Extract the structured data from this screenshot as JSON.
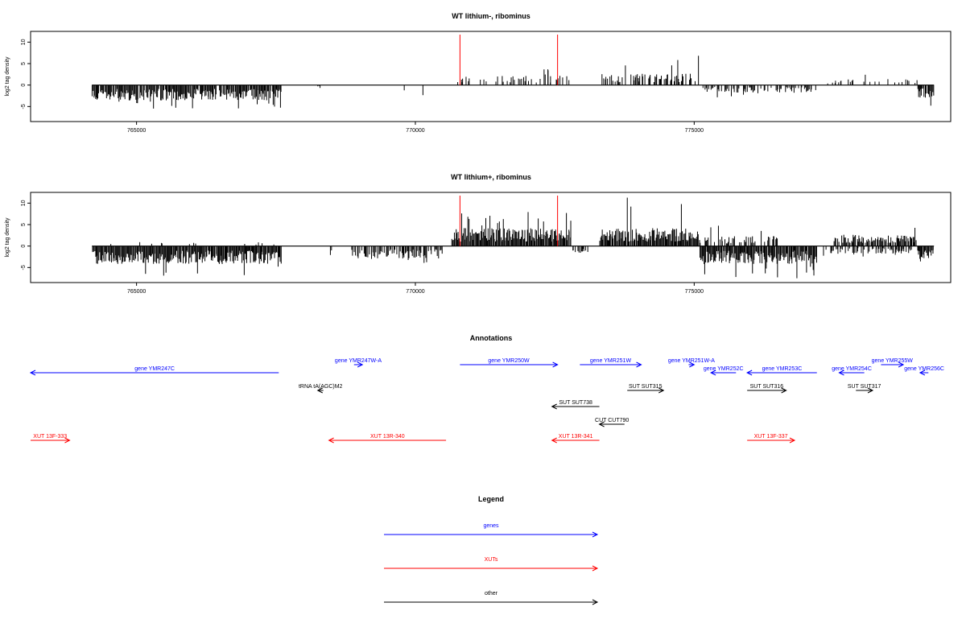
{
  "colors": {
    "genes": "#0000ff",
    "xuts": "#ff0000",
    "other": "#000000",
    "marker": "#ff0000",
    "frame": "#000000"
  },
  "panels": [
    {
      "title": "WT lithium-, ribominus",
      "ylabel": "log2 tag density",
      "y_ticks": [
        "10",
        "5",
        "0",
        "-5"
      ],
      "x_ticks": [
        "765000",
        "770000",
        "775000"
      ]
    },
    {
      "title": "WT lithium+, ribominus",
      "ylabel": "log2 tag density",
      "y_ticks": [
        "10",
        "5",
        "0",
        "-5"
      ],
      "x_ticks": [
        "765000",
        "770000",
        "775000"
      ]
    }
  ],
  "annotations": {
    "title": "Annotations",
    "items": [
      {
        "label": "gene YMR247C",
        "kind": "genes",
        "strand": "-",
        "start": 763100,
        "end": 767550,
        "row": 2
      },
      {
        "label": "gene YMR247W-A",
        "kind": "genes",
        "strand": "+",
        "start": 768900,
        "end": 769050,
        "row": 1
      },
      {
        "label": "tRNA tA(AGC)M2",
        "kind": "other",
        "strand": "-",
        "start": 768250,
        "end": 768350,
        "row": 3
      },
      {
        "label": "gene YMR250W",
        "kind": "genes",
        "strand": "+",
        "start": 770800,
        "end": 772550,
        "row": 1
      },
      {
        "label": "gene YMR251W",
        "kind": "genes",
        "strand": "+",
        "start": 772950,
        "end": 774050,
        "row": 1
      },
      {
        "label": "gene YMR251W-A",
        "kind": "genes",
        "strand": "+",
        "start": 774900,
        "end": 775000,
        "row": 1
      },
      {
        "label": "gene YMR252C",
        "kind": "genes",
        "strand": "-",
        "start": 775300,
        "end": 775750,
        "row": 2
      },
      {
        "label": "gene YMR253C",
        "kind": "genes",
        "strand": "-",
        "start": 775950,
        "end": 777200,
        "row": 2
      },
      {
        "label": "gene YMR254C",
        "kind": "genes",
        "strand": "-",
        "start": 777600,
        "end": 778050,
        "row": 2
      },
      {
        "label": "gene YMR255W",
        "kind": "genes",
        "strand": "+",
        "start": 778350,
        "end": 778750,
        "row": 1
      },
      {
        "label": "gene YMR256C",
        "kind": "genes",
        "strand": "-",
        "start": 779050,
        "end": 779200,
        "row": 2
      },
      {
        "label": "SUT SUT738",
        "kind": "other",
        "strand": "-",
        "start": 772450,
        "end": 773300,
        "row": 4
      },
      {
        "label": "SUT SUT315",
        "kind": "other",
        "strand": "+",
        "start": 773800,
        "end": 774450,
        "row": 3
      },
      {
        "label": "SUT SUT316",
        "kind": "other",
        "strand": "+",
        "start": 775950,
        "end": 776650,
        "row": 3
      },
      {
        "label": "SUT SUT317",
        "kind": "other",
        "strand": "+",
        "start": 777900,
        "end": 778200,
        "row": 3
      },
      {
        "label": "CUT CUT790",
        "kind": "other",
        "strand": "-",
        "start": 773300,
        "end": 773750,
        "row": 5
      },
      {
        "label": "XUT 13F-333",
        "kind": "xuts",
        "strand": "+",
        "start": 763100,
        "end": 763800,
        "row": 6
      },
      {
        "label": "XUT 13R-340",
        "kind": "xuts",
        "strand": "-",
        "start": 768450,
        "end": 770550,
        "row": 6
      },
      {
        "label": "XUT 13R-341",
        "kind": "xuts",
        "strand": "-",
        "start": 772450,
        "end": 773300,
        "row": 6
      },
      {
        "label": "XUT 13F-337",
        "kind": "xuts",
        "strand": "+",
        "start": 775950,
        "end": 776800,
        "row": 6
      }
    ]
  },
  "legend": {
    "title": "Legend",
    "items": [
      {
        "label": "genes",
        "kind": "genes"
      },
      {
        "label": "XUTs",
        "kind": "xuts"
      },
      {
        "label": "other",
        "kind": "other"
      }
    ]
  },
  "chart_data": [
    {
      "type": "bar",
      "title": "WT lithium-, ribominus",
      "xlabel": "",
      "ylabel": "log2 tag density",
      "xlim": [
        763100,
        779600
      ],
      "ylim": [
        -8.5,
        12.5
      ],
      "x_ticks": [
        765000,
        770000,
        775000
      ],
      "y_ticks": [
        10,
        5,
        0,
        -5
      ],
      "grid": false,
      "markers": [
        {
          "x": 770800,
          "color": "#ff0000"
        },
        {
          "x": 772550,
          "color": "#ff0000"
        }
      ],
      "segments": [
        {
          "from": 764200,
          "to": 767600,
          "sign": -1,
          "amp": 3.0,
          "peak": 5.5,
          "density": 0.9
        },
        {
          "from": 766000,
          "to": 767000,
          "sign": 1,
          "amp": 0.6,
          "peak": 1.2,
          "density": 0.03
        },
        {
          "from": 768250,
          "to": 768300,
          "sign": -1,
          "amp": 0.6,
          "peak": 0.8,
          "density": 1.0
        },
        {
          "from": 769600,
          "to": 770300,
          "sign": -1,
          "amp": 2.0,
          "peak": 2.5,
          "density": 0.08
        },
        {
          "from": 770700,
          "to": 772800,
          "sign": 1,
          "amp": 1.8,
          "peak": 4.0,
          "density": 0.25
        },
        {
          "from": 773300,
          "to": 775100,
          "sign": 1,
          "amp": 2.2,
          "peak": 7.0,
          "density": 0.5
        },
        {
          "from": 775150,
          "to": 777200,
          "sign": -1,
          "amp": 1.5,
          "peak": 3.0,
          "density": 0.5
        },
        {
          "from": 777200,
          "to": 779000,
          "sign": 1,
          "amp": 1.2,
          "peak": 3.0,
          "density": 0.15
        },
        {
          "from": 779000,
          "to": 779300,
          "sign": -1,
          "amp": 2.5,
          "peak": 5.0,
          "density": 0.9
        }
      ]
    },
    {
      "type": "bar",
      "title": "WT lithium+, ribominus",
      "xlabel": "",
      "ylabel": "log2 tag density",
      "xlim": [
        763100,
        779600
      ],
      "ylim": [
        -8.5,
        12.5
      ],
      "x_ticks": [
        765000,
        770000,
        775000
      ],
      "y_ticks": [
        10,
        5,
        0,
        -5
      ],
      "grid": false,
      "markers": [
        {
          "x": 770800,
          "color": "#ff0000"
        },
        {
          "x": 772550,
          "color": "#ff0000"
        }
      ],
      "segments": [
        {
          "from": 764200,
          "to": 767600,
          "sign": -1,
          "amp": 3.5,
          "peak": 7.0,
          "density": 1.0
        },
        {
          "from": 764200,
          "to": 767600,
          "sign": 1,
          "amp": 0.8,
          "peak": 2.5,
          "density": 0.06
        },
        {
          "from": 768400,
          "to": 768500,
          "sign": -1,
          "amp": 2.0,
          "peak": 2.5,
          "density": 0.5
        },
        {
          "from": 768800,
          "to": 770500,
          "sign": -1,
          "amp": 2.5,
          "peak": 4.0,
          "density": 0.6
        },
        {
          "from": 770650,
          "to": 772800,
          "sign": 1,
          "amp": 3.5,
          "peak": 8.0,
          "density": 1.0
        },
        {
          "from": 772800,
          "to": 773100,
          "sign": -1,
          "amp": 1.5,
          "peak": 4.0,
          "density": 0.4
        },
        {
          "from": 773300,
          "to": 775100,
          "sign": 1,
          "amp": 3.5,
          "peak": 12.0,
          "density": 1.0
        },
        {
          "from": 775100,
          "to": 777200,
          "sign": -1,
          "amp": 3.5,
          "peak": 7.5,
          "density": 1.0
        },
        {
          "from": 775100,
          "to": 776500,
          "sign": 1,
          "amp": 2.0,
          "peak": 5.0,
          "density": 0.5
        },
        {
          "from": 777300,
          "to": 778900,
          "sign": -1,
          "amp": 1.5,
          "peak": 2.5,
          "density": 0.5
        },
        {
          "from": 777500,
          "to": 779000,
          "sign": 1,
          "amp": 2.2,
          "peak": 5.5,
          "density": 0.8
        },
        {
          "from": 779000,
          "to": 779300,
          "sign": -1,
          "amp": 2.5,
          "peak": 5.5,
          "density": 1.0
        }
      ]
    }
  ]
}
